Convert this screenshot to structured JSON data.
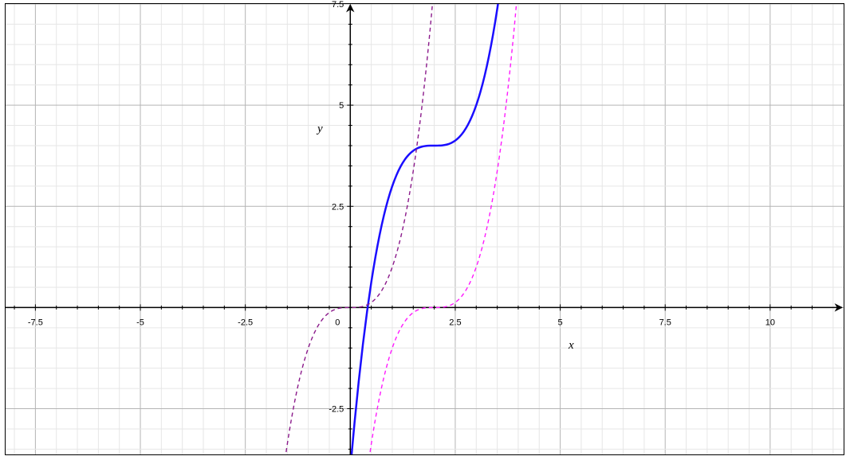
{
  "chart_data": {
    "type": "line",
    "title": "",
    "xlabel": "x",
    "ylabel": "y",
    "xlim": [
      -8.21,
      11.75
    ],
    "ylim": [
      -3.63,
      7.5
    ],
    "grid": true,
    "grid_minor_step": 0.5,
    "grid_major_step": 2.5,
    "x_ticks": [
      -7.5,
      -5,
      -2.5,
      0,
      2.5,
      5,
      7.5,
      10
    ],
    "x_tick_labels": [
      "-7.5",
      "-5",
      "-2.5",
      "0",
      "2.5",
      "5",
      "7.5",
      "10"
    ],
    "y_ticks": [
      -2.5,
      2.5,
      5,
      7.5
    ],
    "y_tick_labels": [
      "-2.5",
      "2.5",
      "5",
      "7.5"
    ],
    "series": [
      {
        "color": "#1a0dff",
        "style": "solid",
        "x": [
          0.0,
          0.1,
          0.2,
          0.3,
          0.4,
          0.5,
          0.6,
          0.7,
          0.8,
          0.9,
          1.0,
          1.1,
          1.2,
          1.3,
          1.4,
          1.5,
          1.6,
          1.7,
          1.8,
          1.9,
          2.0,
          2.1,
          2.2,
          2.3,
          2.4,
          2.5,
          2.6,
          2.7,
          2.8,
          2.9,
          3.0,
          3.1,
          3.2,
          3.3,
          3.4,
          3.5,
          3.6
        ],
        "y": [
          -4,
          -2.859,
          -1.832,
          -0.913,
          -0.096,
          0.625,
          1.256,
          1.803,
          2.272,
          2.669,
          3,
          3.271,
          3.488,
          3.657,
          3.784,
          3.875,
          3.936,
          3.973,
          3.992,
          3.999,
          4,
          4.001,
          4.008,
          4.027,
          4.064,
          4.125,
          4.216,
          4.343,
          4.512,
          4.729,
          5,
          5.331,
          5.728,
          6.197,
          6.744,
          7.375,
          8.096
        ]
      },
      {
        "color": "#8b1a8b",
        "style": "dashed",
        "x": [
          -1.6,
          -1.5,
          -1.4,
          -1.3,
          -1.2,
          -1.1,
          -1.0,
          -0.9,
          -0.8,
          -0.7,
          -0.6,
          -0.5,
          -0.4,
          -0.3,
          -0.2,
          -0.1,
          0.0,
          0.1,
          0.2,
          0.3,
          0.4,
          0.5,
          0.6,
          0.7,
          0.8,
          0.9,
          1.0,
          1.1,
          1.2,
          1.3,
          1.4,
          1.5,
          1.6,
          1.7,
          1.8,
          1.9,
          2.0
        ],
        "y": [
          -4.096,
          -3.375,
          -2.744,
          -2.197,
          -1.728,
          -1.331,
          -1,
          -0.729,
          -0.512,
          -0.343,
          -0.216,
          -0.125,
          -0.064,
          -0.027,
          -0.008,
          -0.001,
          0,
          0.001,
          0.008,
          0.027,
          0.064,
          0.125,
          0.216,
          0.343,
          0.512,
          0.729,
          1,
          1.331,
          1.728,
          2.197,
          2.744,
          3.375,
          4.096,
          4.913,
          5.832,
          6.859,
          8
        ]
      },
      {
        "color": "#ff1aff",
        "style": "dashed",
        "x": [
          0.4,
          0.5,
          0.6,
          0.7,
          0.8,
          0.9,
          1.0,
          1.1,
          1.2,
          1.3,
          1.4,
          1.5,
          1.6,
          1.7,
          1.8,
          1.9,
          2.0,
          2.1,
          2.2,
          2.3,
          2.4,
          2.5,
          2.6,
          2.7,
          2.8,
          2.9,
          3.0,
          3.1,
          3.2,
          3.3,
          3.4,
          3.5,
          3.6,
          3.7,
          3.8,
          3.9,
          4.0
        ],
        "y": [
          -4.096,
          -3.375,
          -2.744,
          -2.197,
          -1.728,
          -1.331,
          -1,
          -0.729,
          -0.512,
          -0.343,
          -0.216,
          -0.125,
          -0.064,
          -0.027,
          -0.008,
          -0.001,
          0,
          0.001,
          0.008,
          0.027,
          0.064,
          0.125,
          0.216,
          0.343,
          0.512,
          0.729,
          1,
          1.331,
          1.728,
          2.197,
          2.744,
          3.375,
          4.096,
          4.913,
          5.832,
          6.859,
          8
        ]
      }
    ]
  }
}
